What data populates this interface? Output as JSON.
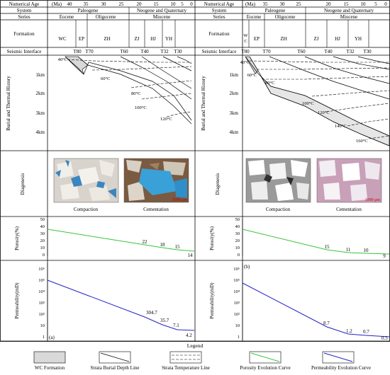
{
  "colors": {
    "line": "#000000",
    "porosity": "#39c43a",
    "permeability": "#2222c8",
    "wc_fill": "#d9d9d9",
    "burial_fill": "#e6e6e6",
    "photo_blue": "#3a86c0",
    "photo_pink": "#c8a0b8"
  },
  "header": {
    "numerical_age": "Numerical Age",
    "system": "System",
    "series": "Series",
    "formation": "Formation",
    "seismic_interface": "Seismic Interface",
    "ma_label": "(Ma)"
  },
  "row_labels": {
    "burial": "Burial and Thermal History",
    "diagenesis": "Diagenesis",
    "porosity": "Porosity(%)",
    "permeability": "Permeability(mD)"
  },
  "left": {
    "panel_tag": "(a)",
    "ages": [
      "40",
      "35",
      "30",
      "25",
      "20",
      "15",
      "10",
      "5",
      "0"
    ],
    "systems": [
      "Paleogene",
      "Neogene and Quaternary"
    ],
    "series": [
      "Eocene",
      "Oligocene",
      "Miocene"
    ],
    "formations": [
      "WC",
      "EP",
      "ZH",
      "ZJ",
      "HJ",
      "YH"
    ],
    "interfaces": [
      "T80",
      "T70",
      "T60",
      "T40",
      "T32",
      "T30"
    ],
    "depths": [
      "1km",
      "2km",
      "3km",
      "4km"
    ],
    "temps": [
      "40°C",
      "60°C",
      "80°C",
      "100°C",
      "120°C"
    ],
    "photo_captions": [
      "Compaction",
      "Cementation"
    ],
    "scale_label": "1000 μm",
    "porosity_ticks": [
      "0",
      "10",
      "20",
      "30",
      "40",
      "50"
    ],
    "porosity_labels": [
      "22",
      "18",
      "15",
      "14"
    ],
    "perm_labels": [
      "304.7",
      "35.7",
      "7.1",
      "4.2"
    ]
  },
  "right": {
    "panel_tag": "(b)",
    "ages": [
      "35",
      "30",
      "25",
      "20",
      "15",
      "10",
      "5",
      "0"
    ],
    "systems": [
      "Paleogene",
      "Neogene and Quaternary"
    ],
    "series": [
      "Eocene",
      "Oligocene",
      "Miocene"
    ],
    "formations": [
      "W",
      "C",
      "EP",
      "ZH",
      "ZJ",
      "HJ",
      "YH"
    ],
    "interfaces": [
      "T80",
      "T70",
      "T60",
      "T40",
      "T32",
      "T30"
    ],
    "depths": [
      "1km",
      "2km",
      "3km",
      "4km"
    ],
    "temps": [
      "40°C",
      "60°C",
      "80°C",
      "100°C",
      "120°C",
      "140°C",
      "160°C"
    ],
    "photo_captions": [
      "Compaction",
      "Cementation"
    ],
    "scale_label": "1000 μm",
    "porosity_ticks": [
      "0",
      "10",
      "20",
      "30",
      "40",
      "50"
    ],
    "porosity_labels": [
      "15",
      "11",
      "10",
      "9"
    ],
    "perm_labels": [
      "8.7",
      "1.2",
      "0.7",
      "0.5"
    ]
  },
  "perm_ticks": [
    "1",
    "10",
    "10²",
    "10³",
    "10⁴",
    "10⁵",
    "10⁶"
  ],
  "legend": {
    "title": "Legend",
    "items": [
      "WC Formation",
      "Strata Burial Depth Line",
      "Strata Temperature Line",
      "Porosity Evolution Curve",
      "Permeability Evolution Curve"
    ]
  }
}
